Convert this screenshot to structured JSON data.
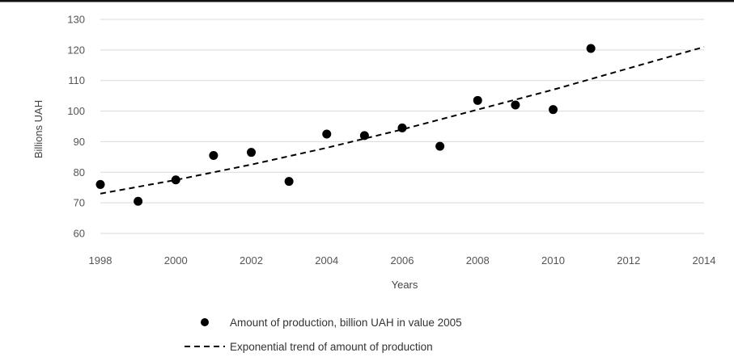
{
  "chart_data": {
    "type": "scatter",
    "xlabel": "Years",
    "ylabel": "Billions UAH",
    "xlim": [
      1998,
      2014
    ],
    "ylim": [
      60,
      130
    ],
    "xticks": [
      1998,
      2000,
      2002,
      2004,
      2006,
      2008,
      2010,
      2012,
      2014
    ],
    "yticks": [
      60,
      70,
      80,
      90,
      100,
      110,
      120,
      130
    ],
    "grid": "horizontal",
    "legend_position": "bottom",
    "series": [
      {
        "name": "Amount of production, billion UAH in value 2005",
        "kind": "scatter",
        "color": "#000000",
        "x": [
          1998,
          1999,
          2000,
          2001,
          2002,
          2003,
          2004,
          2005,
          2006,
          2007,
          2008,
          2009,
          2010,
          2011
        ],
        "y": [
          76,
          70.5,
          77.5,
          85.5,
          86.5,
          77,
          92.5,
          92,
          94.5,
          88.5,
          103.5,
          102,
          100.5,
          120.5
        ]
      },
      {
        "name": "Exponential trend of amount of production",
        "kind": "line",
        "style": "dashed",
        "color": "#000000",
        "x": [
          1998,
          2000,
          2002,
          2004,
          2006,
          2008,
          2010,
          2012,
          2014
        ],
        "y": [
          73,
          77.5,
          82.5,
          88,
          94,
          100.5,
          107,
          114,
          121
        ]
      }
    ]
  }
}
